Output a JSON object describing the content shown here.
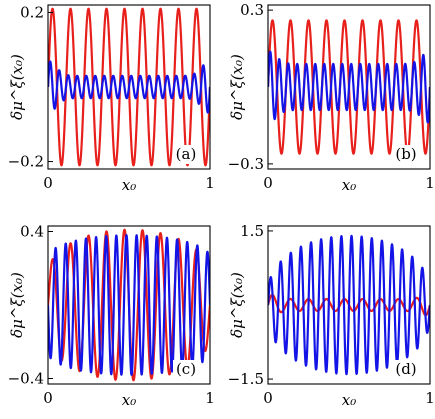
{
  "chart_data": [
    {
      "panel": "(a)",
      "type": "line",
      "xlabel": "x₀",
      "ylabel": "δμ^ξ(x₀)",
      "xlim": [
        0,
        1
      ],
      "ylim": [
        -0.22,
        0.22
      ],
      "xticks": [
        {
          "value": 0,
          "label": "0"
        },
        {
          "value": 1,
          "label": "1"
        }
      ],
      "yticks": [
        {
          "value": 0.2,
          "label": "0.2"
        },
        {
          "value": -0.2,
          "label": "−0.2"
        }
      ],
      "series": [
        {
          "color": "#e8201c",
          "envelope": "uniform",
          "amplitude": 0.21,
          "cycles": 9,
          "phase": 0.0
        },
        {
          "color": "#1414e6",
          "envelope": "edge-peaked",
          "amplitude": 0.03,
          "edge_amplitude": 0.07,
          "cycles": 18,
          "phase": 0.0
        }
      ]
    },
    {
      "panel": "(b)",
      "type": "line",
      "xlabel": "x₀",
      "ylabel": "δμ^ξ(x₀)",
      "xlim": [
        0,
        1
      ],
      "ylim": [
        -0.32,
        0.32
      ],
      "xticks": [
        {
          "value": 0,
          "label": "0"
        },
        {
          "value": 1,
          "label": "1"
        }
      ],
      "yticks": [
        {
          "value": 0.3,
          "label": "0.3"
        },
        {
          "value": -0.3,
          "label": "−0.3"
        }
      ],
      "series": [
        {
          "color": "#e8201c",
          "envelope": "uniform",
          "amplitude": 0.26,
          "cycles": 9,
          "phase": 0.0
        },
        {
          "color": "#1414e6",
          "envelope": "edge-peaked",
          "amplitude": 0.09,
          "edge_amplitude": 0.14,
          "cycles": 18,
          "phase": 0.0
        }
      ]
    },
    {
      "panel": "(c)",
      "type": "line",
      "xlabel": "x₀",
      "ylabel": "δμ^ξ(x₀)",
      "xlim": [
        0,
        1
      ],
      "ylim": [
        -0.43,
        0.43
      ],
      "xticks": [
        {
          "value": 0,
          "label": "0"
        },
        {
          "value": 1,
          "label": "1"
        }
      ],
      "yticks": [
        {
          "value": 0.4,
          "label": "0.4"
        },
        {
          "value": -0.4,
          "label": "−0.4"
        }
      ],
      "series": [
        {
          "color": "#e8201c",
          "envelope": "dome",
          "amplitude": 0.41,
          "base_amplitude": 0.17,
          "cycles": 9,
          "phase": 0.0
        },
        {
          "color": "#1414e6",
          "envelope": "dome",
          "amplitude": 0.38,
          "base_amplitude": 0.26,
          "cycles": 16,
          "phase": 3.14
        }
      ]
    },
    {
      "panel": "(d)",
      "type": "line",
      "xlabel": "x₀",
      "ylabel": "δμ^ξ(x₀)",
      "xlim": [
        0,
        1
      ],
      "ylim": [
        -1.6,
        1.6
      ],
      "xticks": [
        {
          "value": 0,
          "label": "0"
        },
        {
          "value": 1,
          "label": "1"
        }
      ],
      "yticks": [
        {
          "value": 1.5,
          "label": "1.5"
        },
        {
          "value": -1.5,
          "label": "−1.5"
        }
      ],
      "series": [
        {
          "color": "#e8201c",
          "envelope": "edge-peaked",
          "amplitude": 0.12,
          "edge_amplitude": 0.22,
          "cycles": 9,
          "phase": 0.0
        },
        {
          "color": "#1414e6",
          "envelope": "dome",
          "amplitude": 1.4,
          "base_amplitude": 0.28,
          "cycles": 16,
          "phase": 0.0
        }
      ]
    }
  ]
}
